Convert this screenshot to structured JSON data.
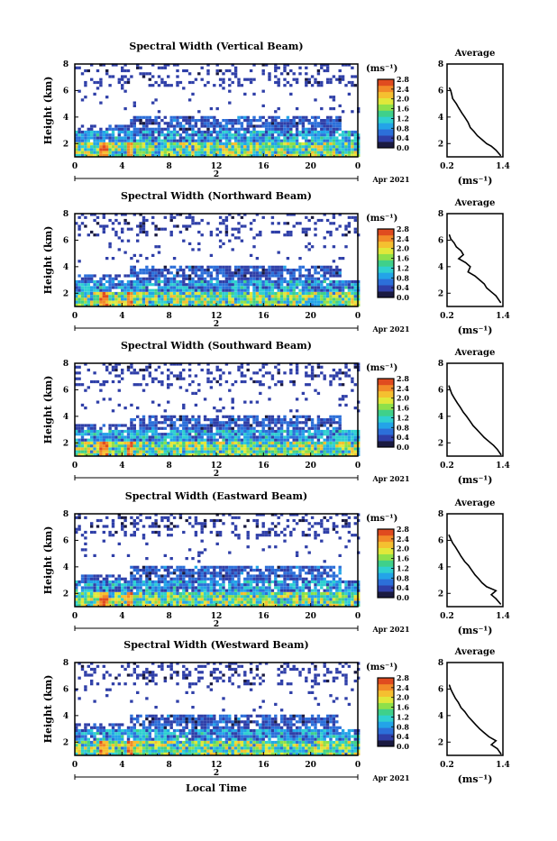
{
  "figure": {
    "xlabel": "Local Time",
    "colors": {
      "colormap": [
        "#ffffff",
        "#1a1a40",
        "#2f3fa8",
        "#2c6fd9",
        "#23a4e8",
        "#2fd0d0",
        "#3fd08a",
        "#8ee04a",
        "#e0e83a",
        "#f5c030",
        "#f28a28",
        "#e04b1f"
      ],
      "ink": "#000000"
    }
  },
  "chart_data": [
    {
      "type": "heatmap",
      "title": "Spectral Width (Vertical Beam)",
      "xlabel": "",
      "ylabel": "Height (km)",
      "x_ticks": [
        "0",
        "4",
        "8",
        "12",
        "16",
        "20",
        "0"
      ],
      "y_ticks": [
        "2",
        "4",
        "6",
        "8"
      ],
      "xlim": [
        0,
        24
      ],
      "ylim": [
        1,
        8
      ],
      "date_marker": "2",
      "date_label": "Apr 2021",
      "colorbar": {
        "unit": "(ms⁻¹)",
        "ticks": [
          "0.0",
          "0.4",
          "0.8",
          "1.2",
          "1.6",
          "2.0",
          "2.4",
          "2.8"
        ],
        "range": [
          0,
          2.8
        ]
      },
      "profile": {
        "title": "Average",
        "xlabel": "(ms⁻¹)",
        "x_ticks": [
          "0.2",
          "1.4"
        ],
        "y_ticks": [
          "2",
          "4",
          "6",
          "8"
        ],
        "xlim": [
          0.2,
          1.4
        ],
        "ylim": [
          1,
          8
        ],
        "x": [
          0.25,
          0.28,
          0.3,
          0.32,
          0.4,
          0.45,
          0.52,
          0.58,
          0.65,
          0.7,
          0.78,
          0.85,
          0.95,
          1.05,
          1.15,
          1.25,
          1.35
        ],
        "y": [
          6.2,
          6.0,
          5.7,
          5.4,
          5.0,
          4.7,
          4.3,
          4.0,
          3.6,
          3.2,
          2.9,
          2.6,
          2.3,
          2.0,
          1.8,
          1.5,
          1.1
        ]
      }
    },
    {
      "type": "heatmap",
      "title": "Spectral Width (Northward Beam)",
      "xlabel": "",
      "ylabel": "Height (km)",
      "x_ticks": [
        "0",
        "4",
        "8",
        "12",
        "16",
        "20",
        "0"
      ],
      "y_ticks": [
        "2",
        "4",
        "6",
        "8"
      ],
      "xlim": [
        0,
        24
      ],
      "ylim": [
        1,
        8
      ],
      "date_marker": "2",
      "date_label": "Apr 2021",
      "colorbar": {
        "unit": "(ms⁻¹)",
        "ticks": [
          "0.0",
          "0.4",
          "0.8",
          "1.2",
          "1.6",
          "2.0",
          "2.4",
          "2.8"
        ],
        "range": [
          0,
          2.8
        ]
      },
      "profile": {
        "title": "Average",
        "xlabel": "(ms⁻¹)",
        "x_ticks": [
          "0.2",
          "1.4"
        ],
        "y_ticks": [
          "2",
          "4",
          "6",
          "8"
        ],
        "xlim": [
          0.2,
          1.4
        ],
        "ylim": [
          1,
          8
        ],
        "x": [
          0.25,
          0.28,
          0.35,
          0.4,
          0.5,
          0.55,
          0.45,
          0.6,
          0.7,
          0.65,
          0.8,
          0.9,
          1.0,
          1.05,
          1.15,
          1.25,
          1.35
        ],
        "y": [
          6.4,
          6.1,
          5.8,
          5.5,
          5.2,
          4.9,
          4.6,
          4.3,
          4.0,
          3.6,
          3.3,
          3.0,
          2.7,
          2.4,
          2.1,
          1.8,
          1.3
        ]
      }
    },
    {
      "type": "heatmap",
      "title": "Spectral Width (Southward Beam)",
      "xlabel": "",
      "ylabel": "Height (km)",
      "x_ticks": [
        "0",
        "4",
        "8",
        "12",
        "16",
        "20",
        "0"
      ],
      "y_ticks": [
        "2",
        "4",
        "6",
        "8"
      ],
      "xlim": [
        0,
        24
      ],
      "ylim": [
        1,
        8
      ],
      "date_marker": "2",
      "date_label": "Apr 2021",
      "colorbar": {
        "unit": "(ms⁻¹)",
        "ticks": [
          "0.0",
          "0.4",
          "0.8",
          "1.2",
          "1.6",
          "2.0",
          "2.4",
          "2.8"
        ],
        "range": [
          0,
          2.8
        ]
      },
      "profile": {
        "title": "Average",
        "xlabel": "(ms⁻¹)",
        "x_ticks": [
          "0.2",
          "1.4"
        ],
        "y_ticks": [
          "2",
          "4",
          "6",
          "8"
        ],
        "xlim": [
          0.2,
          1.4
        ],
        "ylim": [
          1,
          8
        ],
        "x": [
          0.24,
          0.27,
          0.3,
          0.35,
          0.42,
          0.48,
          0.55,
          0.62,
          0.7,
          0.76,
          0.84,
          0.92,
          1.0,
          1.1,
          1.2,
          1.28,
          1.36
        ],
        "y": [
          6.3,
          6.0,
          5.7,
          5.4,
          5.0,
          4.7,
          4.3,
          4.0,
          3.6,
          3.3,
          3.0,
          2.7,
          2.4,
          2.1,
          1.8,
          1.5,
          1.1
        ]
      }
    },
    {
      "type": "heatmap",
      "title": "Spectral Width (Eastward Beam)",
      "xlabel": "",
      "ylabel": "Height (km)",
      "x_ticks": [
        "0",
        "4",
        "8",
        "12",
        "16",
        "20",
        "0"
      ],
      "y_ticks": [
        "2",
        "4",
        "6",
        "8"
      ],
      "xlim": [
        0,
        24
      ],
      "ylim": [
        1,
        8
      ],
      "date_marker": "2",
      "date_label": "Apr 2021",
      "colorbar": {
        "unit": "(ms⁻¹)",
        "ticks": [
          "0.0",
          "0.4",
          "0.8",
          "1.2",
          "1.6",
          "2.0",
          "2.4",
          "2.8"
        ],
        "range": [
          0,
          2.8
        ]
      },
      "profile": {
        "title": "Average",
        "xlabel": "(ms⁻¹)",
        "x_ticks": [
          "0.2",
          "1.4"
        ],
        "y_ticks": [
          "2",
          "4",
          "6",
          "8"
        ],
        "xlim": [
          0.2,
          1.4
        ],
        "ylim": [
          1,
          8
        ],
        "x": [
          0.24,
          0.28,
          0.32,
          0.38,
          0.45,
          0.5,
          0.58,
          0.66,
          0.74,
          0.8,
          0.88,
          0.95,
          1.05,
          1.25,
          1.15,
          1.25,
          1.35
        ],
        "y": [
          6.4,
          6.1,
          5.8,
          5.5,
          5.1,
          4.8,
          4.4,
          4.1,
          3.7,
          3.4,
          3.1,
          2.8,
          2.5,
          2.2,
          1.9,
          1.6,
          1.2
        ]
      }
    },
    {
      "type": "heatmap",
      "title": "Spectral Width (Westward Beam)",
      "xlabel": "",
      "ylabel": "Height (km)",
      "x_ticks": [
        "0",
        "4",
        "8",
        "12",
        "16",
        "20",
        "0"
      ],
      "y_ticks": [
        "2",
        "4",
        "6",
        "8"
      ],
      "xlim": [
        0,
        24
      ],
      "ylim": [
        1,
        8
      ],
      "date_marker": "2",
      "date_label": "Apr 2021",
      "colorbar": {
        "unit": "(ms⁻¹)",
        "ticks": [
          "0.0",
          "0.4",
          "0.8",
          "1.2",
          "1.6",
          "2.0",
          "2.4",
          "2.8"
        ],
        "range": [
          0,
          2.8
        ]
      },
      "profile": {
        "title": "Average",
        "xlabel": "(ms⁻¹)",
        "x_ticks": [
          "0.2",
          "1.4"
        ],
        "y_ticks": [
          "2",
          "4",
          "6",
          "8"
        ],
        "xlim": [
          0.2,
          1.4
        ],
        "ylim": [
          1,
          8
        ],
        "x": [
          0.25,
          0.28,
          0.32,
          0.38,
          0.44,
          0.5,
          0.58,
          0.66,
          0.74,
          0.82,
          0.9,
          1.0,
          1.1,
          1.25,
          1.15,
          1.28,
          1.36
        ],
        "y": [
          6.3,
          6.0,
          5.7,
          5.3,
          5.0,
          4.6,
          4.3,
          3.9,
          3.6,
          3.3,
          3.0,
          2.7,
          2.4,
          2.1,
          1.8,
          1.5,
          1.1
        ]
      }
    }
  ]
}
